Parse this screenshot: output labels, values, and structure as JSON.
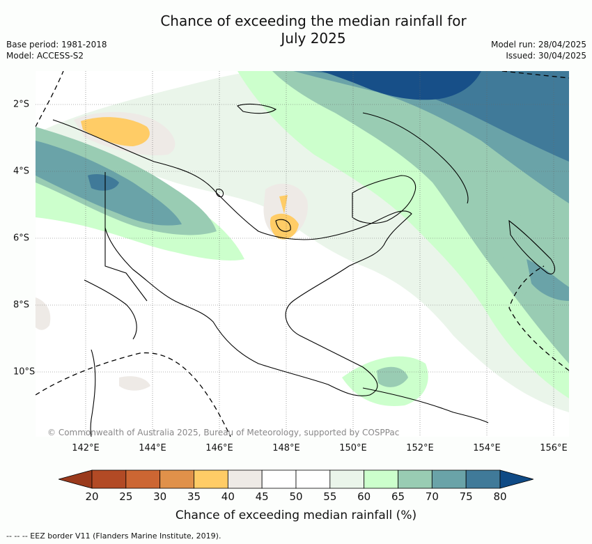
{
  "header": {
    "title_line1": "Chance of exceeding the median rainfall for",
    "title_line2": "July 2025",
    "base_period": "Base period: 1981-2018",
    "model": "Model: ACCESS-S2",
    "model_run": "Model run: 28/04/2025",
    "issued": "Issued: 30/04/2025"
  },
  "map": {
    "copyright": "© Commonwealth of Australia 2025, Bureau of Meteorology, supported by COSPPac",
    "x_ticks": [
      "142°E",
      "144°E",
      "146°E",
      "148°E",
      "150°E",
      "152°E",
      "154°E",
      "156°E"
    ],
    "y_ticks": [
      "2°S",
      "4°S",
      "6°S",
      "8°S",
      "10°S"
    ]
  },
  "colorbar": {
    "title": "Chance of exceeding median rainfall (%)",
    "labels": [
      "20",
      "25",
      "30",
      "35",
      "40",
      "45",
      "50",
      "55",
      "60",
      "65",
      "70",
      "75",
      "80"
    ],
    "colors": [
      "#b24a25",
      "#cc6633",
      "#e0914a",
      "#ffcc66",
      "#eeeae6",
      "#ffffff",
      "#ffffff",
      "#eaf5ea",
      "#ccffcc",
      "#99ccb3",
      "#6aa3a8",
      "#407a99",
      "#174f88"
    ],
    "low_color": "#9a3a1c",
    "high_color": "#0f4a85"
  },
  "footnote": "--  --  -- EEZ border V11 (Flanders Marine Institute, 2019)."
}
